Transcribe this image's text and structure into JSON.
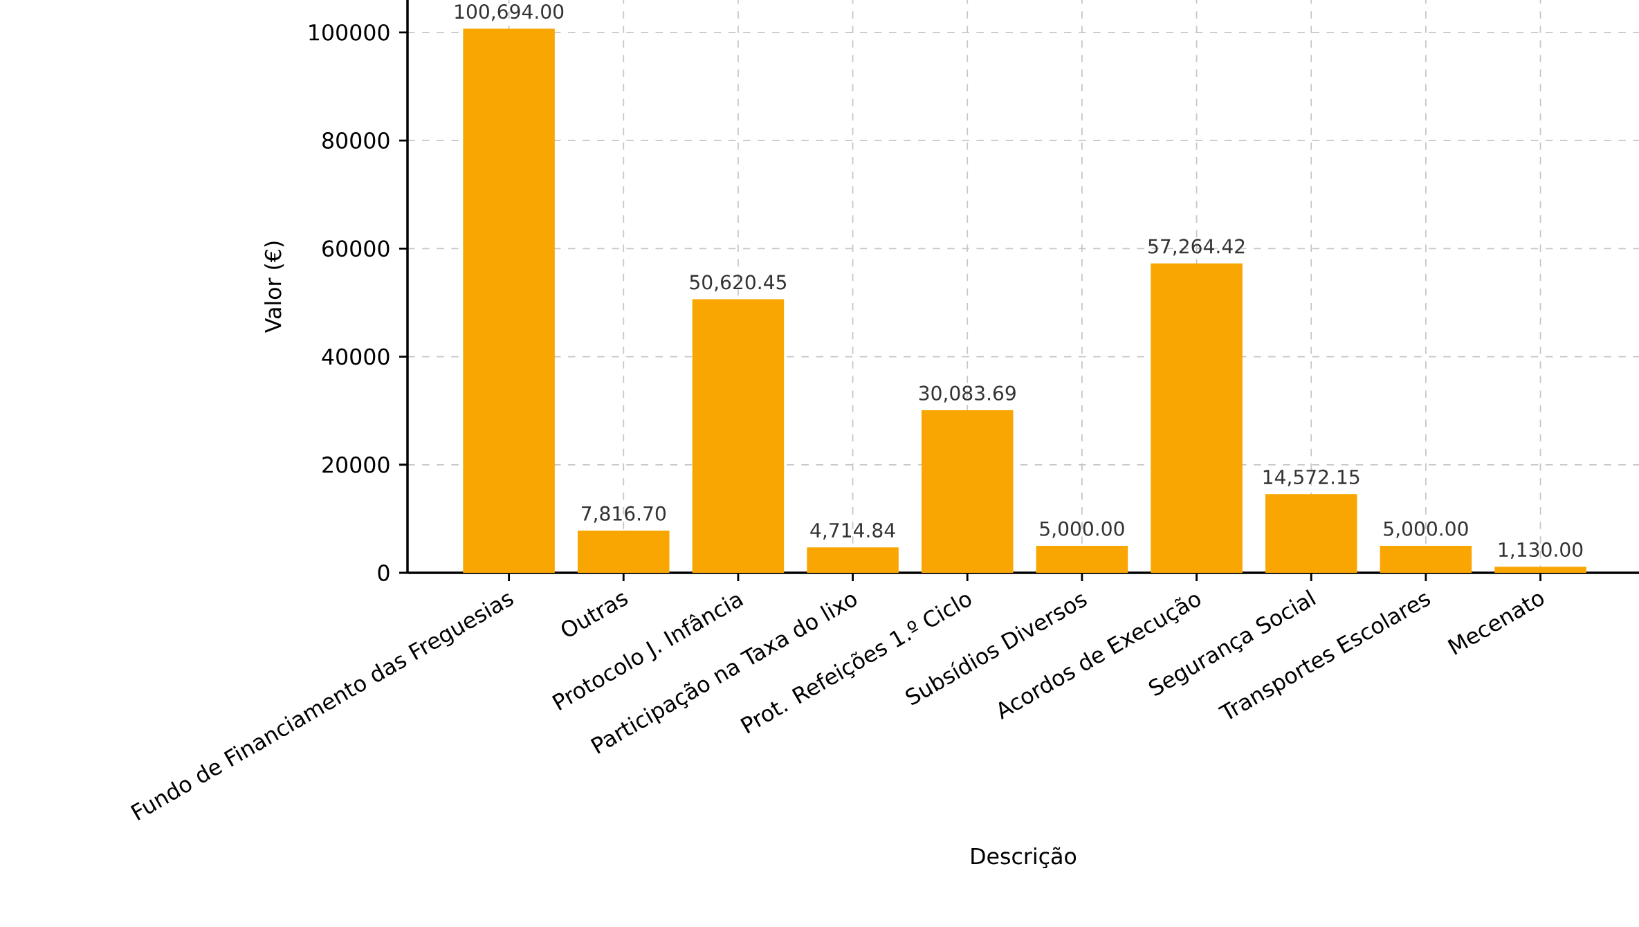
{
  "chart_data": {
    "type": "bar",
    "xlabel": "Descrição",
    "ylabel": "Valor (€)",
    "categories": [
      "Fundo de Financiamento das Freguesias",
      "Outras",
      "Protocolo J. Infância",
      "Participação na Taxa do lixo",
      "Prot. Refeições 1.º Ciclo",
      "Subsídios Diversos",
      "Acordos de Execução",
      "Segurança Social",
      "Transportes Escolares",
      "Mecenato"
    ],
    "values": [
      100694.0,
      7816.7,
      50620.45,
      4714.84,
      30083.69,
      5000.0,
      57264.42,
      14572.15,
      5000.0,
      1130.0
    ],
    "value_labels": [
      "100,694.00",
      "7,816.70",
      "50,620.45",
      "4,714.84",
      "30,083.69",
      "5,000.00",
      "57,264.42",
      "14,572.15",
      "5,000.00",
      "1,130.00"
    ],
    "color": "#f9a602",
    "ylim": [
      0,
      106000
    ],
    "yticks": [
      0,
      20000,
      40000,
      60000,
      80000,
      100000
    ],
    "grid": true
  }
}
